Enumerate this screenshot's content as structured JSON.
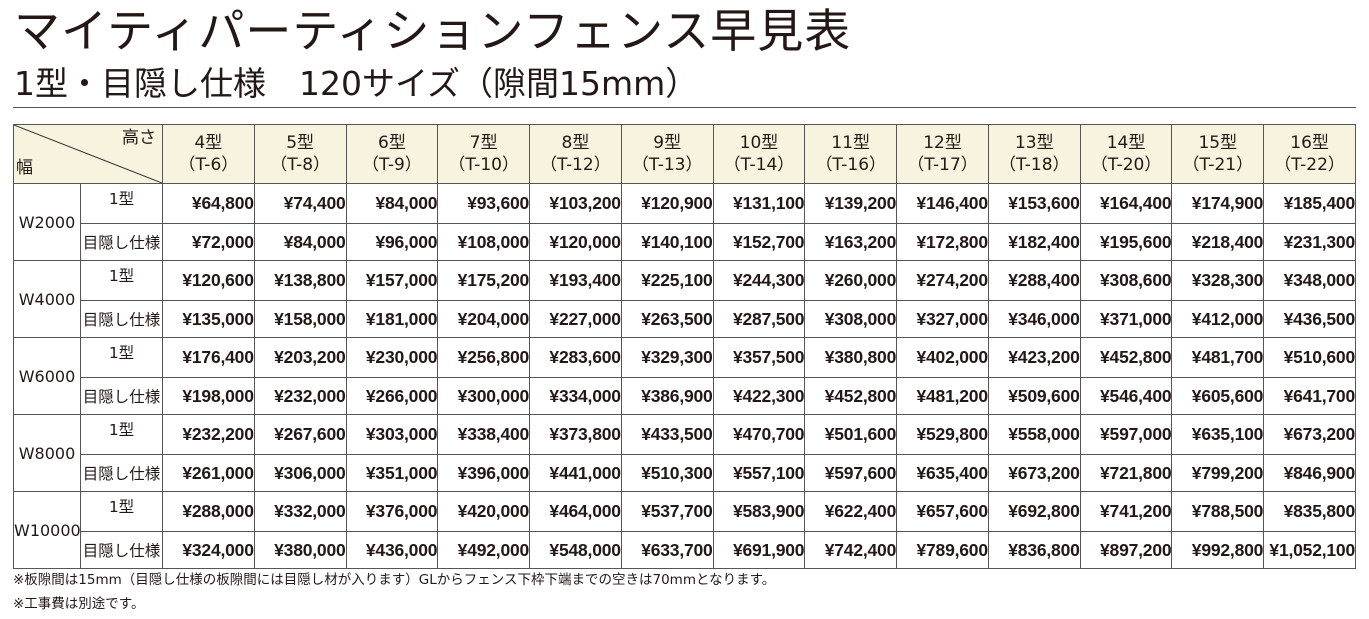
{
  "title": "マイティパーティションフェンス早見表",
  "subtitle": "1型・目隠し仕様　120サイズ（隙間15mm）",
  "table": {
    "corner": {
      "height_label": "高さ",
      "width_label": "幅"
    },
    "columns": [
      {
        "type": "4型",
        "code": "（T-6）"
      },
      {
        "type": "5型",
        "code": "（T-8）"
      },
      {
        "type": "6型",
        "code": "（T-9）"
      },
      {
        "type": "7型",
        "code": "（T-10）"
      },
      {
        "type": "8型",
        "code": "（T-12）"
      },
      {
        "type": "9型",
        "code": "（T-13）"
      },
      {
        "type": "10型",
        "code": "（T-14）"
      },
      {
        "type": "11型",
        "code": "（T-16）"
      },
      {
        "type": "12型",
        "code": "（T-17）"
      },
      {
        "type": "13型",
        "code": "（T-18）"
      },
      {
        "type": "14型",
        "code": "（T-20）"
      },
      {
        "type": "15型",
        "code": "（T-21）"
      },
      {
        "type": "16型",
        "code": "（T-22）"
      }
    ],
    "groups": [
      {
        "width": "W2000",
        "rows": [
          {
            "spec": "1型",
            "prices": [
              "¥64,800",
              "¥74,400",
              "¥84,000",
              "¥93,600",
              "¥103,200",
              "¥120,900",
              "¥131,100",
              "¥139,200",
              "¥146,400",
              "¥153,600",
              "¥164,400",
              "¥174,900",
              "¥185,400"
            ]
          },
          {
            "spec": "目隠し仕様",
            "prices": [
              "¥72,000",
              "¥84,000",
              "¥96,000",
              "¥108,000",
              "¥120,000",
              "¥140,100",
              "¥152,700",
              "¥163,200",
              "¥172,800",
              "¥182,400",
              "¥195,600",
              "¥218,400",
              "¥231,300"
            ]
          }
        ]
      },
      {
        "width": "W4000",
        "rows": [
          {
            "spec": "1型",
            "prices": [
              "¥120,600",
              "¥138,800",
              "¥157,000",
              "¥175,200",
              "¥193,400",
              "¥225,100",
              "¥244,300",
              "¥260,000",
              "¥274,200",
              "¥288,400",
              "¥308,600",
              "¥328,300",
              "¥348,000"
            ]
          },
          {
            "spec": "目隠し仕様",
            "prices": [
              "¥135,000",
              "¥158,000",
              "¥181,000",
              "¥204,000",
              "¥227,000",
              "¥263,500",
              "¥287,500",
              "¥308,000",
              "¥327,000",
              "¥346,000",
              "¥371,000",
              "¥412,000",
              "¥436,500"
            ]
          }
        ]
      },
      {
        "width": "W6000",
        "rows": [
          {
            "spec": "1型",
            "prices": [
              "¥176,400",
              "¥203,200",
              "¥230,000",
              "¥256,800",
              "¥283,600",
              "¥329,300",
              "¥357,500",
              "¥380,800",
              "¥402,000",
              "¥423,200",
              "¥452,800",
              "¥481,700",
              "¥510,600"
            ]
          },
          {
            "spec": "目隠し仕様",
            "prices": [
              "¥198,000",
              "¥232,000",
              "¥266,000",
              "¥300,000",
              "¥334,000",
              "¥386,900",
              "¥422,300",
              "¥452,800",
              "¥481,200",
              "¥509,600",
              "¥546,400",
              "¥605,600",
              "¥641,700"
            ]
          }
        ]
      },
      {
        "width": "W8000",
        "rows": [
          {
            "spec": "1型",
            "prices": [
              "¥232,200",
              "¥267,600",
              "¥303,000",
              "¥338,400",
              "¥373,800",
              "¥433,500",
              "¥470,700",
              "¥501,600",
              "¥529,800",
              "¥558,000",
              "¥597,000",
              "¥635,100",
              "¥673,200"
            ]
          },
          {
            "spec": "目隠し仕様",
            "prices": [
              "¥261,000",
              "¥306,000",
              "¥351,000",
              "¥396,000",
              "¥441,000",
              "¥510,300",
              "¥557,100",
              "¥597,600",
              "¥635,400",
              "¥673,200",
              "¥721,800",
              "¥799,200",
              "¥846,900"
            ]
          }
        ]
      },
      {
        "width": "W10000",
        "rows": [
          {
            "spec": "1型",
            "prices": [
              "¥288,000",
              "¥332,000",
              "¥376,000",
              "¥420,000",
              "¥464,000",
              "¥537,700",
              "¥583,900",
              "¥622,400",
              "¥657,600",
              "¥692,800",
              "¥741,200",
              "¥788,500",
              "¥835,800"
            ]
          },
          {
            "spec": "目隠し仕様",
            "prices": [
              "¥324,000",
              "¥380,000",
              "¥436,000",
              "¥492,000",
              "¥548,000",
              "¥633,700",
              "¥691,900",
              "¥742,400",
              "¥789,600",
              "¥836,800",
              "¥897,200",
              "¥992,800",
              "¥1,052,100"
            ]
          }
        ]
      }
    ]
  },
  "notes": [
    "※板隙間は15mm（目隠し仕様の板隙間には目隠し材が入ります）GLからフェンス下枠下端までの空きは70mmとなります。",
    "※工事費は別途です。"
  ],
  "colors": {
    "header_bg": "#f7f3df",
    "border": "#555555",
    "text": "#231815"
  }
}
